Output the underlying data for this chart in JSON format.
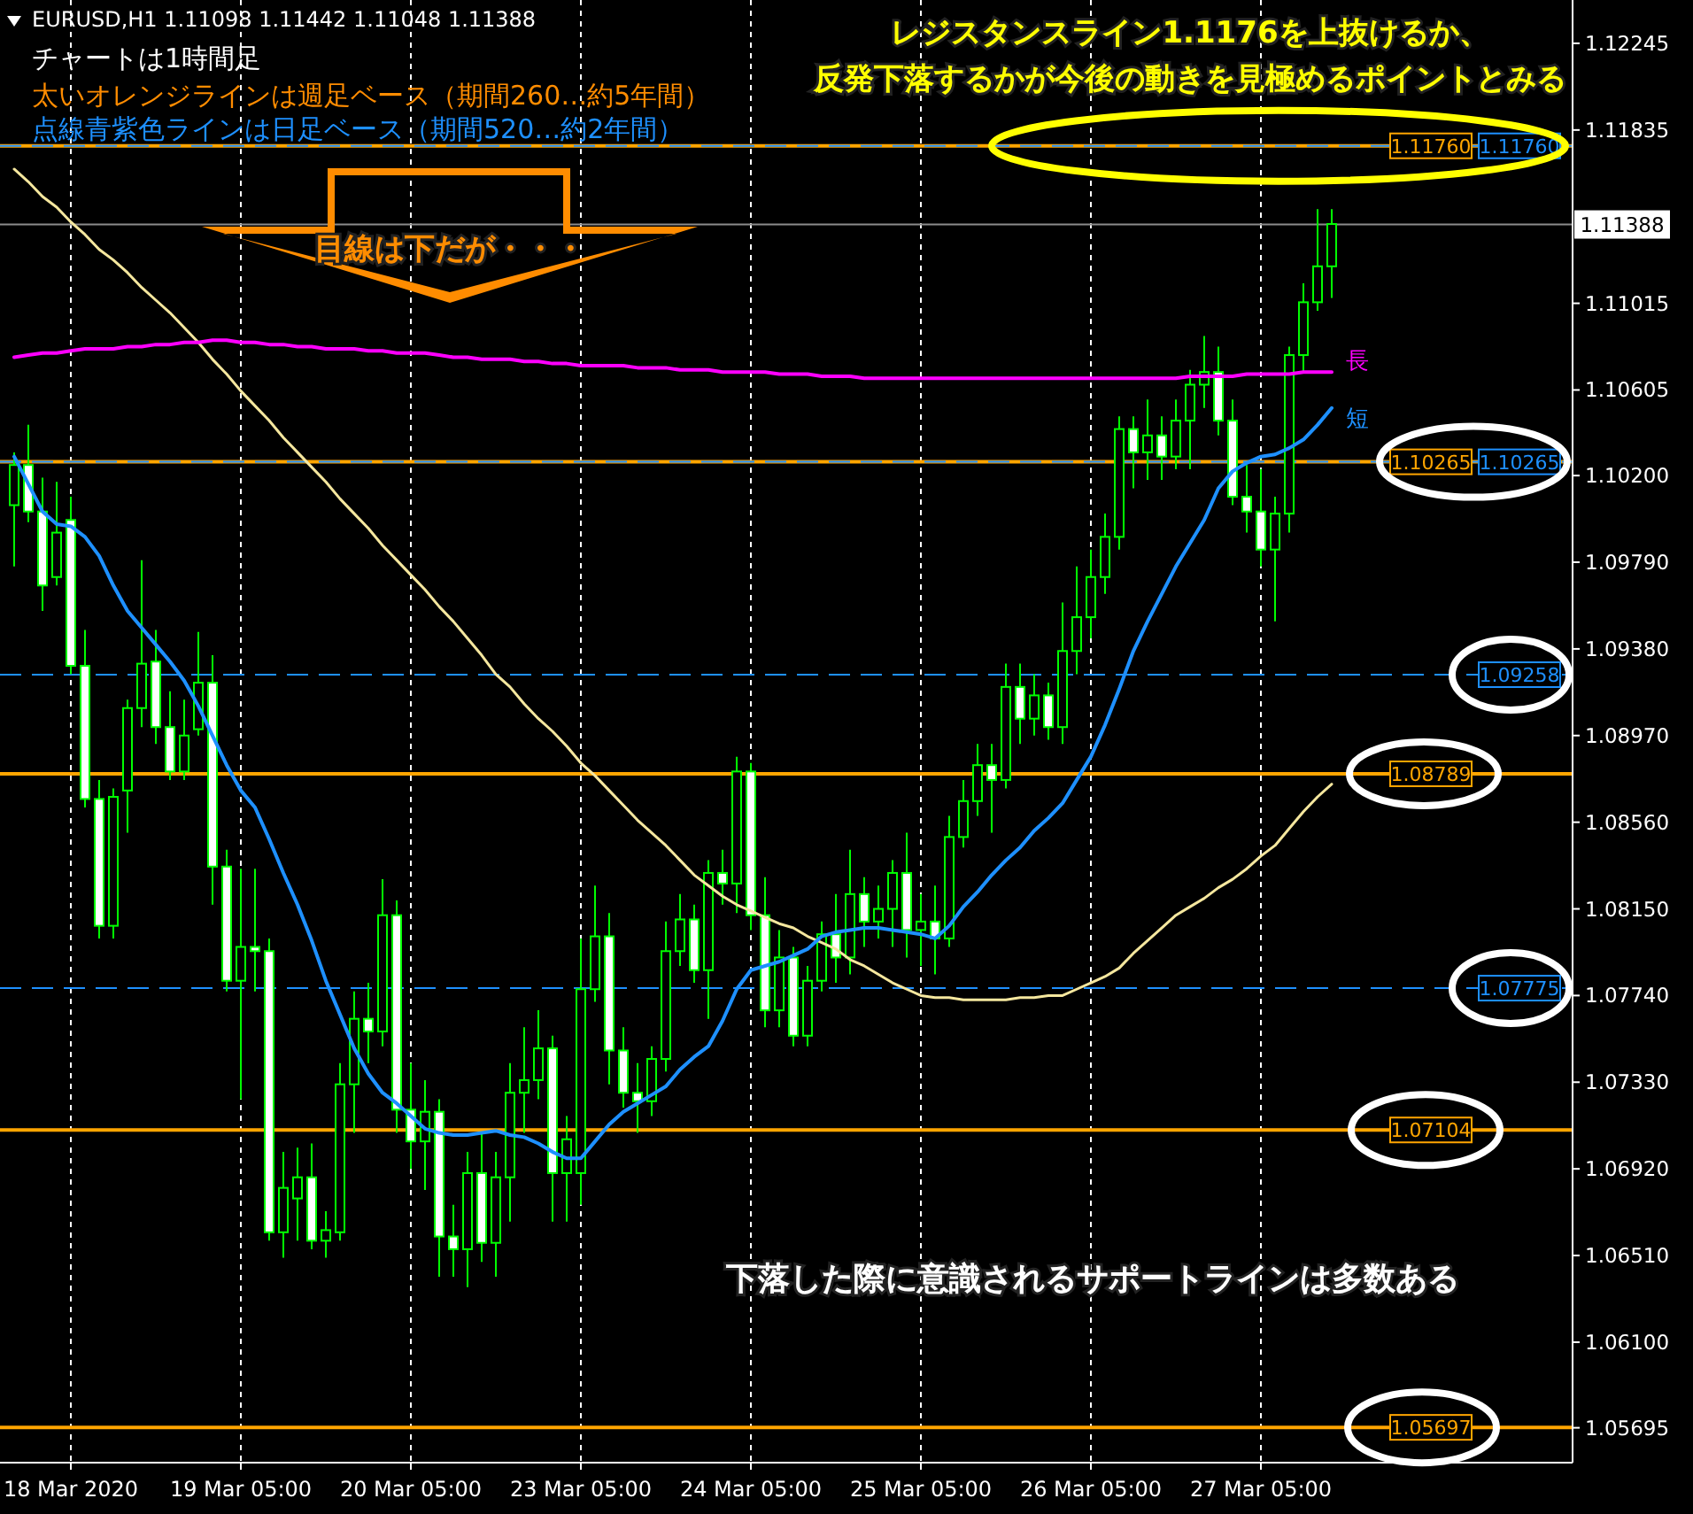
{
  "chart_data": {
    "type": "candlestick",
    "color": "#00ff00",
    "categories": [
      null,
      null,
      null,
      null,
      "18 Mar 2020",
      null,
      null,
      null,
      null,
      null,
      null,
      null,
      null,
      null,
      null,
      null,
      "19 Mar 05:00",
      null,
      null,
      null,
      null,
      null,
      null,
      null,
      null,
      null,
      null,
      null,
      "20 Mar 05:00",
      null,
      null,
      null,
      null,
      null,
      null,
      null,
      null,
      null,
      null,
      null,
      "23 Mar 05:00",
      null,
      null,
      null,
      null,
      null,
      null,
      null,
      null,
      null,
      null,
      null,
      "24 Mar 05:00",
      null,
      null,
      null,
      null,
      null,
      null,
      null,
      null,
      null,
      null,
      null,
      "25 Mar 05:00",
      null,
      null,
      null,
      null,
      null,
      null,
      null,
      null,
      null,
      null,
      null,
      "26 Mar 05:00",
      null,
      null,
      null,
      null,
      null,
      null,
      null,
      null,
      null,
      null,
      null,
      "27 Mar 05:00",
      null,
      null,
      null,
      null,
      null
    ],
    "ohlc": [
      [
        1.1006,
        1.1031,
        1.0977,
        1.1025
      ],
      [
        1.1025,
        1.1044,
        1.0998,
        1.1003
      ],
      [
        1.1003,
        1.1019,
        1.0956,
        1.0968
      ],
      [
        1.0972,
        1.1017,
        1.0968,
        1.0993
      ],
      [
        1.0999,
        1.101,
        1.0926,
        1.093
      ],
      [
        1.093,
        1.0947,
        1.0863,
        1.0867
      ],
      [
        1.0867,
        1.0876,
        1.0801,
        1.0807
      ],
      [
        1.0807,
        1.0872,
        1.0801,
        1.0868
      ],
      [
        1.0871,
        1.0914,
        1.0851,
        1.091
      ],
      [
        1.091,
        1.098,
        1.0901,
        1.0931
      ],
      [
        1.0932,
        1.0947,
        1.0893,
        1.0901
      ],
      [
        1.0901,
        1.0918,
        1.0876,
        1.088
      ],
      [
        1.088,
        1.0914,
        1.0876,
        1.0897
      ],
      [
        1.09,
        1.0946,
        1.0897,
        1.0922
      ],
      [
        1.0922,
        1.0935,
        1.0817,
        1.0835
      ],
      [
        1.0835,
        1.0843,
        1.0776,
        1.0781
      ],
      [
        1.0781,
        1.0834,
        1.0725,
        1.0797
      ],
      [
        1.0797,
        1.0834,
        1.0776,
        1.0795
      ],
      [
        1.0795,
        1.0801,
        1.0658,
        1.0662
      ],
      [
        1.0662,
        1.07,
        1.065,
        1.0683
      ],
      [
        1.0678,
        1.0702,
        1.0658,
        1.0688
      ],
      [
        1.0688,
        1.0704,
        1.0654,
        1.0658
      ],
      [
        1.0658,
        1.0672,
        1.065,
        1.0663
      ],
      [
        1.0662,
        1.0742,
        1.0658,
        1.0732
      ],
      [
        1.0732,
        1.0776,
        1.0709,
        1.0763
      ],
      [
        1.0763,
        1.078,
        1.0742,
        1.0757
      ],
      [
        1.0757,
        1.0829,
        1.075,
        1.0812
      ],
      [
        1.0812,
        1.0819,
        1.0709,
        1.072
      ],
      [
        1.072,
        1.0742,
        1.0692,
        1.0705
      ],
      [
        1.0705,
        1.0734,
        1.0682,
        1.0719
      ],
      [
        1.0719,
        1.0725,
        1.0641,
        1.066
      ],
      [
        1.066,
        1.0675,
        1.0641,
        1.0654
      ],
      [
        1.0654,
        1.07,
        1.0636,
        1.069
      ],
      [
        1.069,
        1.0709,
        1.0648,
        1.0657
      ],
      [
        1.0657,
        1.07,
        1.0641,
        1.0688
      ],
      [
        1.0688,
        1.0742,
        1.0667,
        1.0728
      ],
      [
        1.0728,
        1.0759,
        1.0709,
        1.0734
      ],
      [
        1.0734,
        1.0767,
        1.0725,
        1.0749
      ],
      [
        1.0749,
        1.0755,
        1.0667,
        1.069
      ],
      [
        1.069,
        1.0717,
        1.0667,
        1.0706
      ],
      [
        1.069,
        1.0801,
        1.0675,
        1.0777
      ],
      [
        1.0777,
        1.0826,
        1.0771,
        1.0802
      ],
      [
        1.0802,
        1.0813,
        1.0732,
        1.0748
      ],
      [
        1.0748,
        1.0759,
        1.0721,
        1.0728
      ],
      [
        1.0728,
        1.0742,
        1.0709,
        1.0724
      ],
      [
        1.0724,
        1.075,
        1.0717,
        1.0744
      ],
      [
        1.0744,
        1.0809,
        1.0738,
        1.0795
      ],
      [
        1.0795,
        1.0822,
        1.0788,
        1.081
      ],
      [
        1.081,
        1.0817,
        1.078,
        1.0786
      ],
      [
        1.0786,
        1.0838,
        1.0763,
        1.0832
      ],
      [
        1.0832,
        1.0843,
        1.0817,
        1.0827
      ],
      [
        1.0827,
        1.0887,
        1.0813,
        1.088
      ],
      [
        1.088,
        1.0884,
        1.0805,
        1.0812
      ],
      [
        1.0812,
        1.083,
        1.0759,
        1.0767
      ],
      [
        1.0767,
        1.0805,
        1.0759,
        1.0792
      ],
      [
        1.0792,
        1.0797,
        1.075,
        1.0755
      ],
      [
        1.0755,
        1.0788,
        1.075,
        1.0781
      ],
      [
        1.0781,
        1.0809,
        1.0776,
        1.0803
      ],
      [
        1.0803,
        1.0822,
        1.078,
        1.0792
      ],
      [
        1.0792,
        1.0843,
        1.0784,
        1.0822
      ],
      [
        1.0822,
        1.083,
        1.0797,
        1.0809
      ],
      [
        1.0809,
        1.0826,
        1.0801,
        1.0815
      ],
      [
        1.0815,
        1.0838,
        1.0797,
        1.0832
      ],
      [
        1.0832,
        1.0851,
        1.0792,
        1.0805
      ],
      [
        1.0805,
        1.0822,
        1.0788,
        1.0809
      ],
      [
        1.0809,
        1.0826,
        1.0784,
        1.0801
      ],
      [
        1.0801,
        1.0859,
        1.0797,
        1.0849
      ],
      [
        1.0849,
        1.0876,
        1.0844,
        1.0866
      ],
      [
        1.0866,
        1.0893,
        1.0859,
        1.0883
      ],
      [
        1.0883,
        1.0893,
        1.0851,
        1.0876
      ],
      [
        1.0876,
        1.0931,
        1.0872,
        1.092
      ],
      [
        1.092,
        1.0931,
        1.0893,
        1.0905
      ],
      [
        1.0905,
        1.0926,
        1.0897,
        1.0916
      ],
      [
        1.0916,
        1.0922,
        1.0895,
        1.0901
      ],
      [
        1.0901,
        1.096,
        1.0893,
        1.0937
      ],
      [
        1.0937,
        1.0977,
        1.0926,
        1.0953
      ],
      [
        1.0953,
        1.0985,
        1.0943,
        1.0972
      ],
      [
        1.0972,
        1.1002,
        1.0964,
        1.0991
      ],
      [
        1.0991,
        1.1048,
        1.0985,
        1.1042
      ],
      [
        1.1042,
        1.1048,
        1.1014,
        1.1031
      ],
      [
        1.1031,
        1.1056,
        1.1018,
        1.1039
      ],
      [
        1.1039,
        1.1048,
        1.1018,
        1.1029
      ],
      [
        1.1029,
        1.1056,
        1.1023,
        1.1046
      ],
      [
        1.1046,
        1.107,
        1.1023,
        1.1063
      ],
      [
        1.1063,
        1.1086,
        1.1052,
        1.1069
      ],
      [
        1.1069,
        1.1081,
        1.1039,
        1.1046
      ],
      [
        1.1046,
        1.1056,
        1.1006,
        1.101
      ],
      [
        1.101,
        1.1025,
        1.0993,
        1.1003
      ],
      [
        1.1003,
        1.1023,
        1.0977,
        1.0985
      ],
      [
        1.0985,
        1.101,
        1.0951,
        1.1002
      ],
      [
        1.1002,
        1.1081,
        1.0993,
        1.1077
      ],
      [
        1.1077,
        1.1111,
        1.1069,
        1.1102
      ],
      [
        1.1102,
        1.1146,
        1.1098,
        1.1119
      ],
      [
        1.1119,
        1.1146,
        1.1104,
        1.1139
      ]
    ],
    "series": [
      {
        "type": "line",
        "color": "#f5e79e",
        "values": [
          1.1165,
          1.1159,
          1.1152,
          1.1147,
          1.114,
          1.1134,
          1.1127,
          1.1122,
          1.1116,
          1.1109,
          1.1103,
          1.1097,
          1.109,
          1.1083,
          1.1075,
          1.1068,
          1.106,
          1.1053,
          1.1046,
          1.1038,
          1.1031,
          1.1024,
          1.1017,
          1.1009,
          1.1002,
          1.0995,
          1.0987,
          1.098,
          1.0973,
          1.0966,
          1.0958,
          1.0951,
          1.0943,
          1.0935,
          1.0926,
          1.092,
          1.0912,
          1.0905,
          1.0899,
          1.0892,
          1.0884,
          1.0878,
          1.0871,
          1.0864,
          1.0857,
          1.0851,
          1.0845,
          1.0838,
          1.0831,
          1.0826,
          1.0821,
          1.0817,
          1.0814,
          1.0811,
          1.0808,
          1.0806,
          1.0802,
          1.0799,
          1.0796,
          1.0791,
          1.0788,
          1.0784,
          1.078,
          1.0777,
          1.0774,
          1.0773,
          1.0773,
          1.0772,
          1.0772,
          1.0772,
          1.0772,
          1.0773,
          1.0773,
          1.0774,
          1.0774,
          1.0777,
          1.078,
          1.0783,
          1.0787,
          1.0794,
          1.08,
          1.0806,
          1.0812,
          1.0816,
          1.082,
          1.0825,
          1.0829,
          1.0834,
          1.084,
          1.0845,
          1.0853,
          1.0861,
          1.0868,
          1.0874
        ]
      },
      {
        "type": "line",
        "name": "長",
        "color": "#ff00ff",
        "values": [
          1.1076,
          1.1077,
          1.1078,
          1.1078,
          1.1079,
          1.108,
          1.108,
          1.108,
          1.1081,
          1.1081,
          1.1082,
          1.1082,
          1.1083,
          1.1083,
          1.1084,
          1.1084,
          1.1083,
          1.1083,
          1.1082,
          1.1082,
          1.1081,
          1.1081,
          1.108,
          1.108,
          1.108,
          1.1079,
          1.1079,
          1.1078,
          1.1078,
          1.1078,
          1.1077,
          1.1076,
          1.1076,
          1.1075,
          1.1075,
          1.1075,
          1.1074,
          1.1074,
          1.1073,
          1.1073,
          1.1072,
          1.1072,
          1.1072,
          1.1072,
          1.1071,
          1.1071,
          1.1071,
          1.107,
          1.107,
          1.107,
          1.1069,
          1.1069,
          1.1069,
          1.1069,
          1.1068,
          1.1068,
          1.1068,
          1.1067,
          1.1067,
          1.1067,
          1.1066,
          1.1066,
          1.1066,
          1.1066,
          1.1066,
          1.1066,
          1.1066,
          1.1066,
          1.1066,
          1.1066,
          1.1066,
          1.1066,
          1.1066,
          1.1066,
          1.1066,
          1.1066,
          1.1066,
          1.1066,
          1.1066,
          1.1066,
          1.1066,
          1.1066,
          1.1066,
          1.1067,
          1.1067,
          1.1067,
          1.1067,
          1.1068,
          1.1068,
          1.1068,
          1.1068,
          1.1069,
          1.1069,
          1.1069
        ]
      },
      {
        "type": "line",
        "name": "短",
        "color": "#1e90ff",
        "values": [
          1.1029,
          1.1016,
          1.1003,
          1.0997,
          1.0996,
          1.0991,
          1.0982,
          1.0968,
          1.0956,
          1.0948,
          1.094,
          1.0932,
          1.0923,
          1.0911,
          1.0897,
          1.0883,
          1.0871,
          1.0863,
          1.0848,
          1.0832,
          1.0817,
          1.08,
          1.0781,
          1.0765,
          1.0749,
          1.0737,
          1.0728,
          1.0723,
          1.0717,
          1.0711,
          1.0709,
          1.0708,
          1.0708,
          1.0709,
          1.071,
          1.0708,
          1.0707,
          1.0704,
          1.07,
          1.0697,
          1.0697,
          1.0705,
          1.0713,
          1.0719,
          1.0723,
          1.0727,
          1.0731,
          1.0739,
          1.0745,
          1.075,
          1.0762,
          1.0777,
          1.0786,
          1.0788,
          1.079,
          1.0793,
          1.0796,
          1.0802,
          1.0804,
          1.0805,
          1.0806,
          1.0806,
          1.0805,
          1.0804,
          1.0803,
          1.0801,
          1.0807,
          1.0816,
          1.0823,
          1.0831,
          1.0838,
          1.0844,
          1.0852,
          1.0858,
          1.0865,
          1.0876,
          1.0887,
          1.0902,
          1.0919,
          1.0937,
          1.0951,
          1.0964,
          1.0977,
          1.0988,
          1.0999,
          1.1014,
          1.1022,
          1.1026,
          1.1029,
          1.103,
          1.1033,
          1.1037,
          1.1044,
          1.1052
        ]
      }
    ],
    "ylim": [
      1.0553,
      1.1245
    ],
    "yticks": [
      1.12245,
      1.11835,
      1.11015,
      1.10605,
      {
        "value": 1.102,
        "label": "1.10200"
      },
      {
        "value": 1.0979,
        "label": "1.09790"
      },
      {
        "value": 1.0938,
        "label": "1.09380"
      },
      {
        "value": 1.0897,
        "label": "1.08970"
      },
      {
        "value": 1.0856,
        "label": "1.08560"
      },
      {
        "value": 1.0815,
        "label": "1.08150"
      },
      {
        "value": 1.0774,
        "label": "1.07740"
      },
      {
        "value": 1.0733,
        "label": "1.07330"
      },
      {
        "value": 1.0692,
        "label": "1.06920"
      },
      {
        "value": 1.0651,
        "label": "1.06510"
      },
      {
        "value": 1.061,
        "label": "1.06100"
      },
      1.05695
    ],
    "grid": "x",
    "ref_lines": [
      {
        "axis": "y",
        "value": 1.1176,
        "label": "1.11760",
        "color": "#ffa500",
        "line_style": "solid"
      },
      {
        "axis": "y",
        "value": 1.1176,
        "label": "1.11760",
        "color": "#1e90ff",
        "line_style": "dashed"
      },
      {
        "axis": "y",
        "value": 1.10265,
        "label": "1.10265",
        "color": "#ffa500",
        "line_style": "solid"
      },
      {
        "axis": "y",
        "value": 1.10265,
        "label": "1.10265",
        "color": "#1e90ff",
        "line_style": "dashed"
      },
      {
        "axis": "y",
        "value": 1.09258,
        "label": "1.09258",
        "color": "#1e90ff",
        "line_style": "dashed"
      },
      {
        "axis": "y",
        "value": 1.08789,
        "label": "1.08789",
        "color": "#ffa500",
        "line_style": "solid"
      },
      {
        "axis": "y",
        "value": 1.07775,
        "label": "1.07775",
        "color": "#1e90ff",
        "line_style": "dashed"
      },
      {
        "axis": "y",
        "value": 1.07104,
        "label": "1.07104",
        "color": "#ffa500",
        "line_style": "solid"
      },
      {
        "axis": "y",
        "value": 1.05697,
        "label": "1.05697",
        "color": "#ffa500",
        "line_style": "solid"
      },
      {
        "axis": "y",
        "value": 1.11388,
        "label": "1.11388",
        "color": "#8c8c8c",
        "line_style": "solid"
      }
    ],
    "annotations": [
      "EURUSD,H1  1.11098 1.11442 1.11048 1.11388",
      "チャートは1時間足",
      "太いオレンジラインは週足ベース（期間260…約5年間）",
      "点線青紫色ラインは日足ベース（期間520…約2年間）",
      "レジスタンスライン1.1176を上抜けるか、",
      "反発下落するかが今後の動きを見極めるポイントとみる",
      "目線は下だが・・・",
      "下落した際に意識されるサポートラインは多数ある"
    ]
  }
}
